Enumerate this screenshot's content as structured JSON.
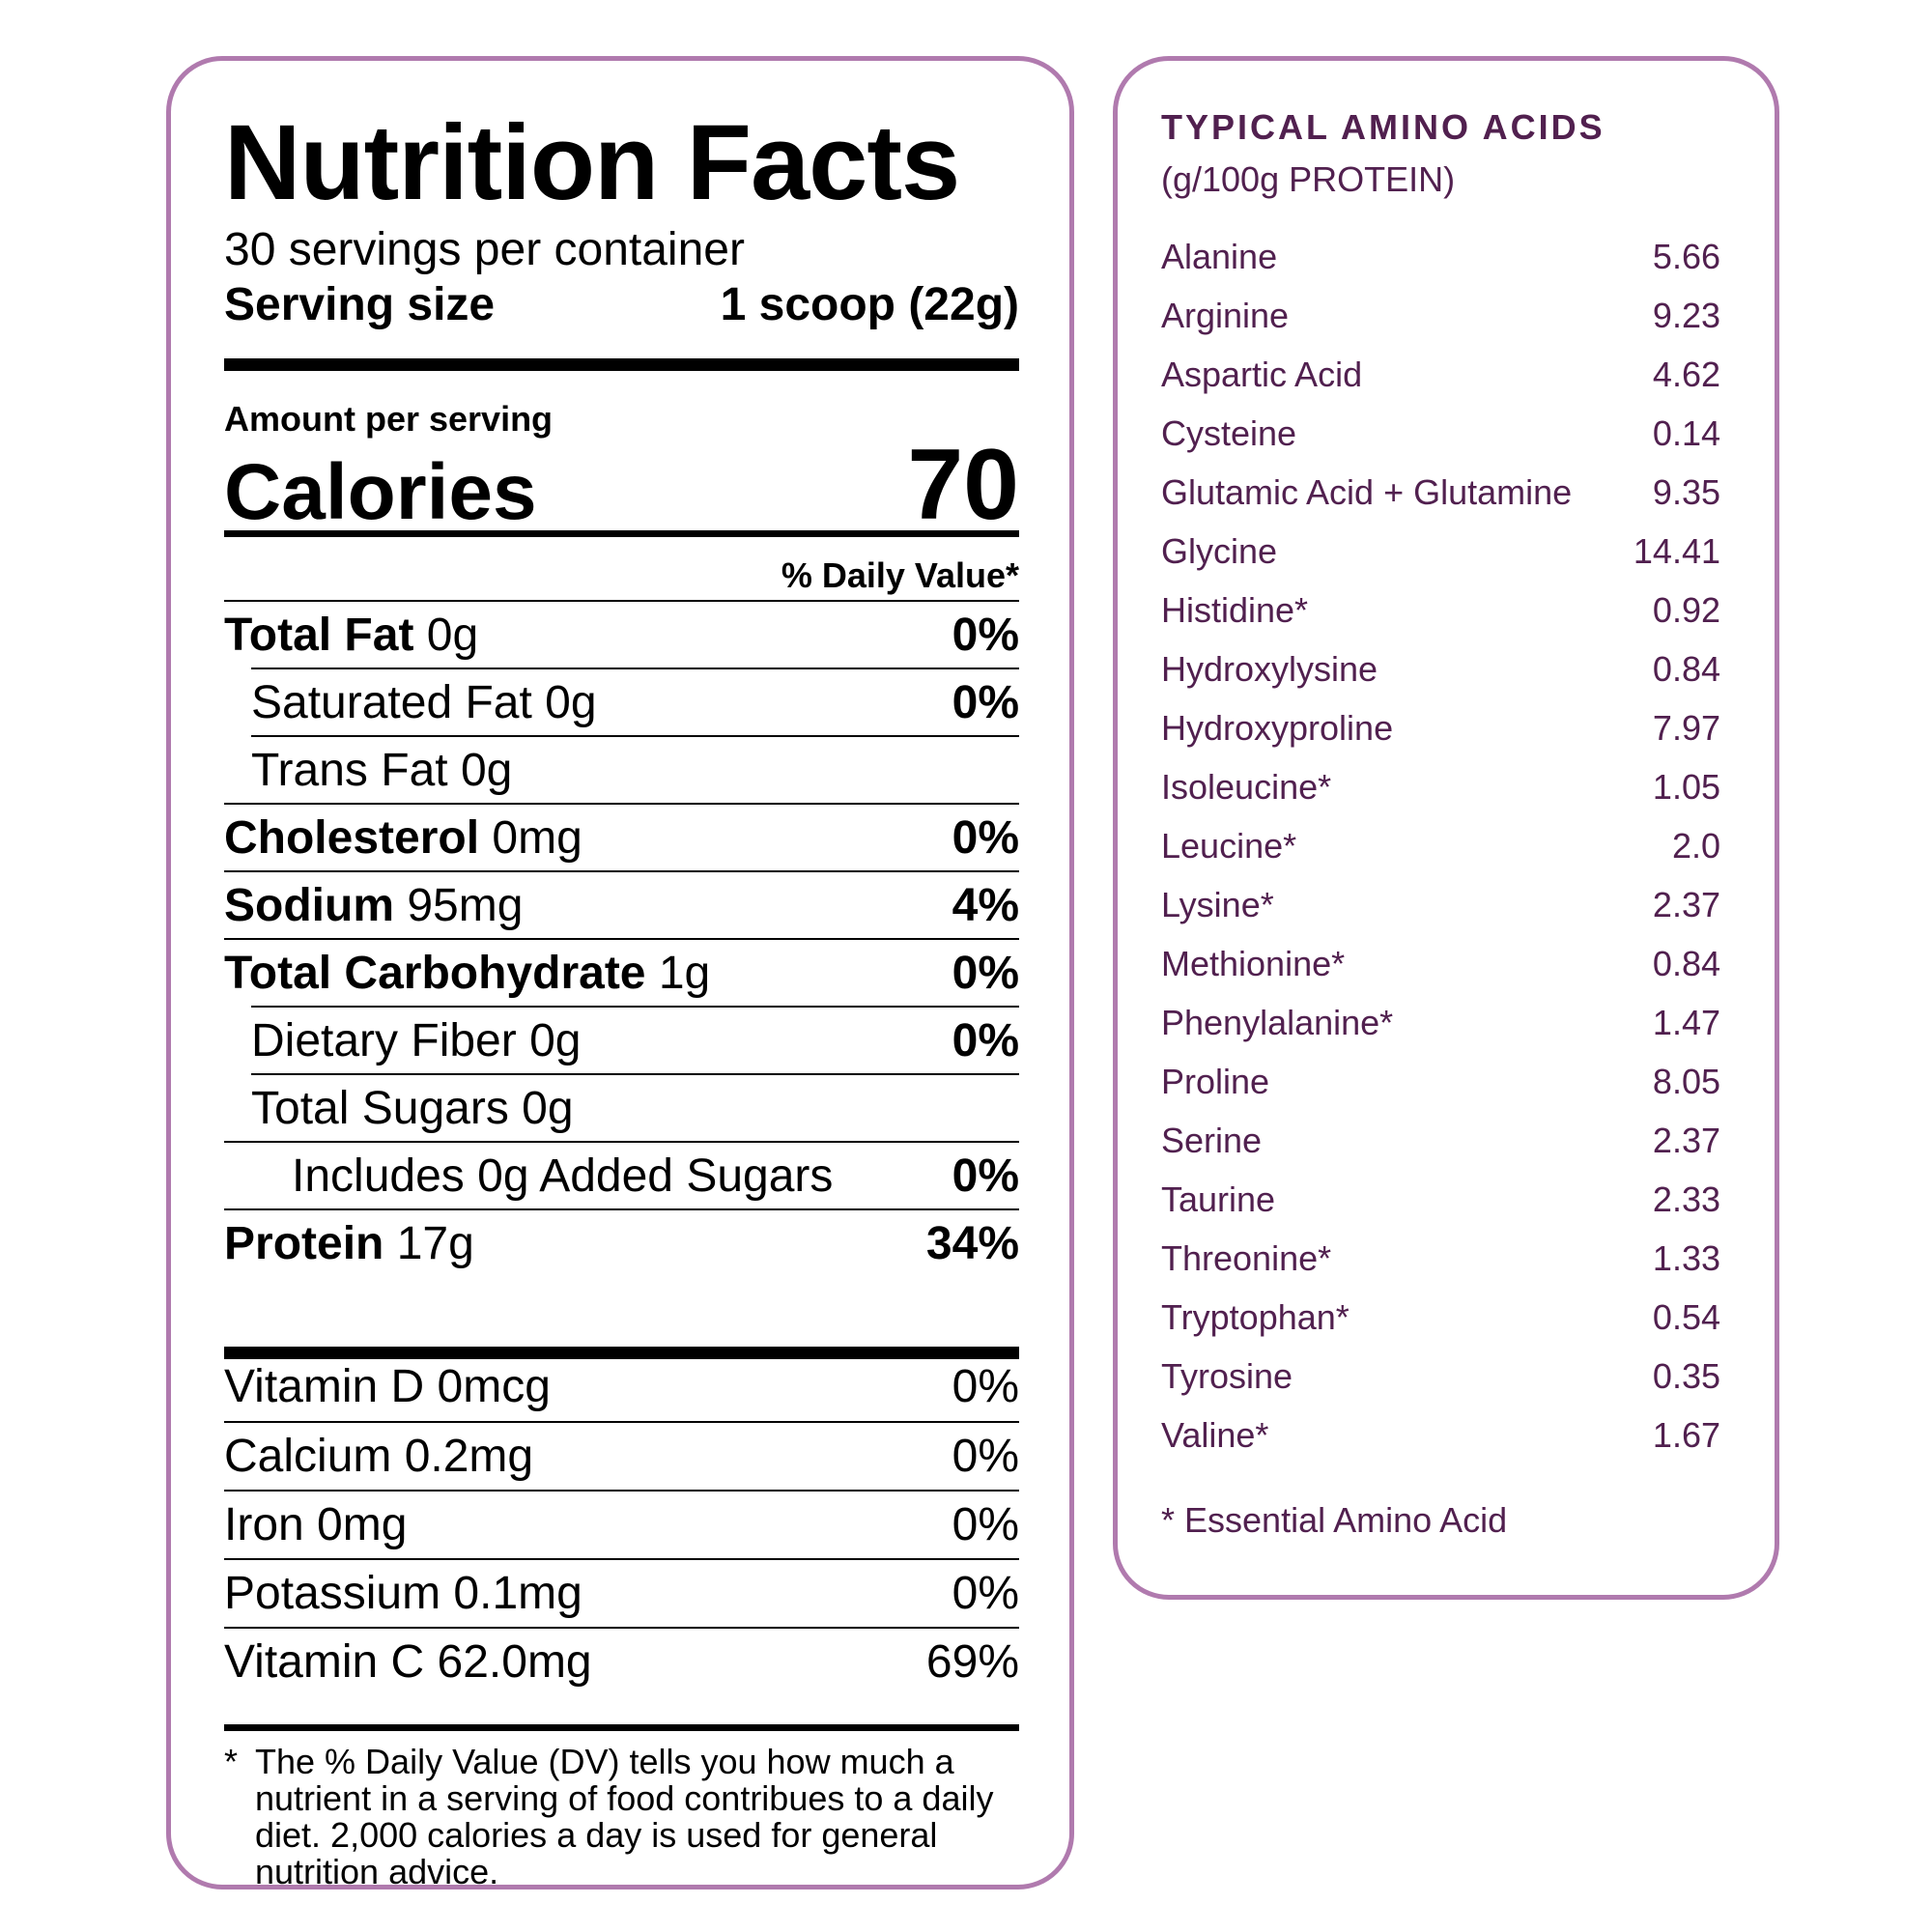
{
  "nutrition_facts": {
    "title": "Nutrition Facts",
    "servings_per_container": "30 servings per container",
    "serving_size_label": "Serving size",
    "serving_size_value": "1 scoop (22g)",
    "amount_per_serving": "Amount per serving",
    "calories_label": "Calories",
    "calories_value": "70",
    "daily_value_header": "% Daily Value*",
    "nutrients": [
      {
        "name": "Total Fat",
        "amount": "0g",
        "dv": "0%"
      },
      {
        "name": "Saturated Fat 0g",
        "amount": "",
        "dv": "0%"
      },
      {
        "name": "Trans Fat 0g",
        "amount": "",
        "dv": ""
      },
      {
        "name": "Cholesterol",
        "amount": "0mg",
        "dv": "0%"
      },
      {
        "name": "Sodium",
        "amount": "95mg",
        "dv": "4%"
      },
      {
        "name": "Total Carbohydrate",
        "amount": "1g",
        "dv": "0%"
      },
      {
        "name": "Dietary Fiber 0g",
        "amount": "",
        "dv": "0%"
      },
      {
        "name": "Total Sugars 0g",
        "amount": "",
        "dv": ""
      },
      {
        "name": "Includes 0g Added Sugars",
        "amount": "",
        "dv": "0%"
      },
      {
        "name": "Protein",
        "amount": "17g",
        "dv": "34%"
      }
    ],
    "vitamins": [
      {
        "name": "Vitamin D 0mcg",
        "dv": "0%"
      },
      {
        "name": "Calcium 0.2mg",
        "dv": "0%"
      },
      {
        "name": "Iron 0mg",
        "dv": "0%"
      },
      {
        "name": "Potassium 0.1mg",
        "dv": "0%"
      },
      {
        "name": "Vitamin C 62.0mg",
        "dv": "69%"
      }
    ],
    "footnote_star": "*",
    "footnote": "The % Daily Value (DV) tells you how much a nutrient in a serving of food contribues to a daily diet. 2,000 calories a day is used for general nutrition advice."
  },
  "amino_acids": {
    "title": "TYPICAL AMINO ACIDS",
    "subtitle": "(g/100g PROTEIN)",
    "items": [
      {
        "name": "Alanine",
        "value": "5.66"
      },
      {
        "name": "Arginine",
        "value": "9.23"
      },
      {
        "name": "Aspartic Acid",
        "value": "4.62"
      },
      {
        "name": "Cysteine",
        "value": "0.14"
      },
      {
        "name": "Glutamic Acid + Glutamine",
        "value": "9.35"
      },
      {
        "name": "Glycine",
        "value": "14.41"
      },
      {
        "name": "Histidine*",
        "value": "0.92"
      },
      {
        "name": "Hydroxylysine",
        "value": "0.84"
      },
      {
        "name": "Hydroxyproline",
        "value": "7.97"
      },
      {
        "name": "Isoleucine*",
        "value": "1.05"
      },
      {
        "name": "Leucine*",
        "value": "2.0"
      },
      {
        "name": "Lysine*",
        "value": "2.37"
      },
      {
        "name": "Methionine*",
        "value": "0.84"
      },
      {
        "name": "Phenylalanine*",
        "value": "1.47"
      },
      {
        "name": "Proline",
        "value": "8.05"
      },
      {
        "name": "Serine",
        "value": "2.37"
      },
      {
        "name": "Taurine",
        "value": "2.33"
      },
      {
        "name": "Threonine*",
        "value": "1.33"
      },
      {
        "name": "Tryptophan*",
        "value": "0.54"
      },
      {
        "name": "Tyrosine",
        "value": "0.35"
      },
      {
        "name": "Valine*",
        "value": "1.67"
      }
    ],
    "footnote": "* Essential Amino Acid"
  },
  "colors": {
    "panel_border": "#b07aae",
    "amino_text": "#51204f"
  }
}
